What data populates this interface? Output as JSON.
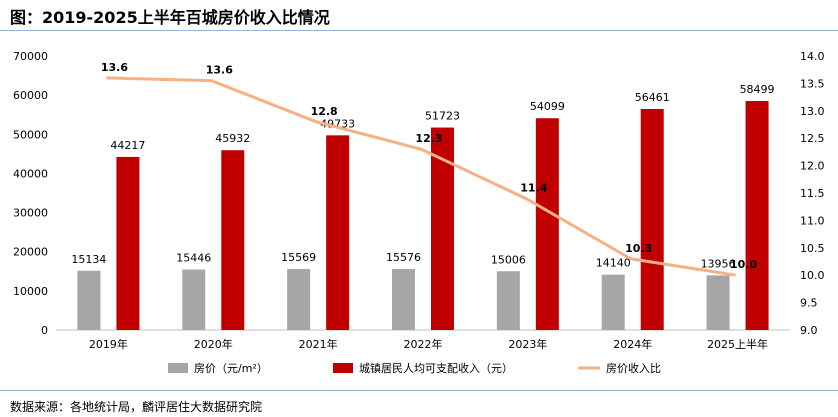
{
  "title": "图：2019-2025上半年百城房价收入比情况",
  "source": "数据来源：各地统计局，麟评居住大数据研究院",
  "chart_data": {
    "type": "bar",
    "categories": [
      "2019年",
      "2020年",
      "2021年",
      "2022年",
      "2023年",
      "2024年",
      "2025上半年"
    ],
    "series": [
      {
        "name": "房价（元/m²）",
        "type": "bar",
        "axis": "left",
        "color": "#a6a6a6",
        "values": [
          15134,
          15446,
          15569,
          15576,
          15006,
          14140,
          13956
        ],
        "labels": [
          "15134",
          "15446",
          "15569",
          "15576",
          "15006",
          "14140",
          "13956"
        ]
      },
      {
        "name": "城镇居民人均可支配收入（元）",
        "type": "bar",
        "axis": "left",
        "color": "#c00000",
        "values": [
          44217,
          45932,
          49733,
          51723,
          54099,
          56461,
          58499
        ],
        "labels": [
          "44217",
          "45932",
          "49733",
          "51723",
          "54099",
          "56461",
          "58499"
        ]
      },
      {
        "name": "房价收入比",
        "type": "line",
        "axis": "right",
        "color": "#f4b183",
        "values": [
          13.6,
          13.55,
          12.8,
          12.3,
          11.4,
          10.3,
          10.0
        ],
        "labels": [
          "13.6",
          "13.6",
          "12.8",
          "12.3",
          "11.4",
          "10.3",
          "10.0"
        ]
      }
    ],
    "y_left": {
      "ylim": [
        0,
        70000
      ],
      "ticks": [
        "0",
        "10000",
        "20000",
        "30000",
        "40000",
        "50000",
        "60000",
        "70000"
      ]
    },
    "y_right": {
      "ylim": [
        9.0,
        14.0
      ],
      "ticks": [
        "9.0",
        "9.5",
        "10.0",
        "10.5",
        "11.0",
        "11.5",
        "12.0",
        "12.5",
        "13.0",
        "13.5",
        "14.0"
      ]
    },
    "legend": "bottom",
    "grid": false
  }
}
